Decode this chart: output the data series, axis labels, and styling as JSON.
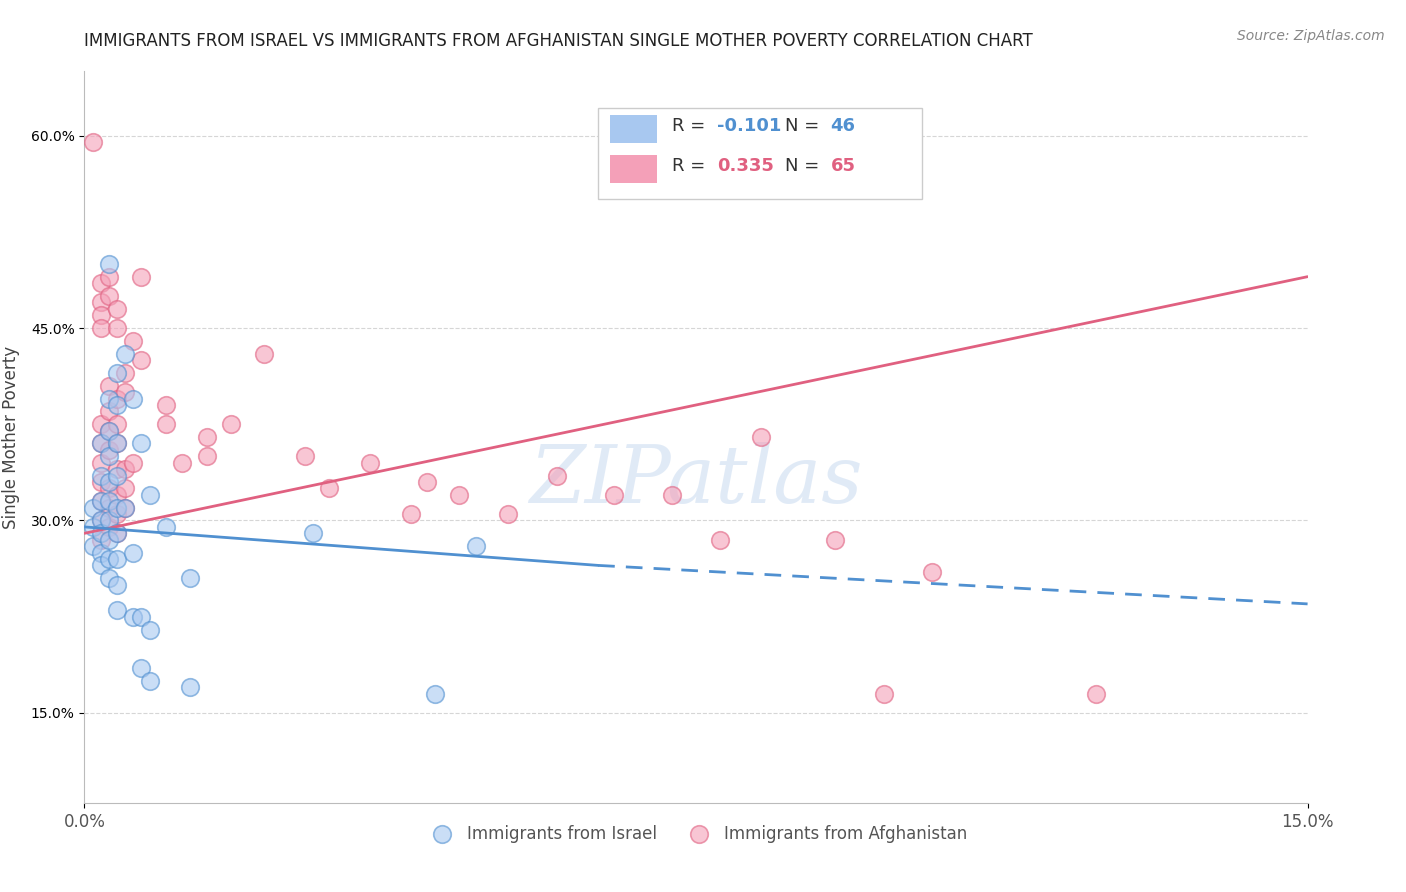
{
  "title": "IMMIGRANTS FROM ISRAEL VS IMMIGRANTS FROM AFGHANISTAN SINGLE MOTHER POVERTY CORRELATION CHART",
  "source": "Source: ZipAtlas.com",
  "ylabel": "Single Mother Poverty",
  "yticks": [
    0.15,
    0.3,
    0.45,
    0.6
  ],
  "xlim": [
    0.0,
    0.15
  ],
  "ylim": [
    0.08,
    0.65
  ],
  "legend_israel_r": "-0.101",
  "legend_israel_n": "46",
  "legend_afghan_r": "0.335",
  "legend_afghan_n": "65",
  "israel_color": "#a8c8f0",
  "afghan_color": "#f4a0b8",
  "israel_line_color": "#5090d0",
  "afghan_line_color": "#e06080",
  "ytick_color": "#5090d0",
  "watermark_text": "ZIPatlas",
  "israel_points": [
    [
      0.001,
      0.31
    ],
    [
      0.001,
      0.295
    ],
    [
      0.001,
      0.28
    ],
    [
      0.002,
      0.36
    ],
    [
      0.002,
      0.335
    ],
    [
      0.002,
      0.315
    ],
    [
      0.002,
      0.3
    ],
    [
      0.002,
      0.29
    ],
    [
      0.002,
      0.275
    ],
    [
      0.002,
      0.265
    ],
    [
      0.003,
      0.5
    ],
    [
      0.003,
      0.395
    ],
    [
      0.003,
      0.37
    ],
    [
      0.003,
      0.35
    ],
    [
      0.003,
      0.33
    ],
    [
      0.003,
      0.315
    ],
    [
      0.003,
      0.3
    ],
    [
      0.003,
      0.285
    ],
    [
      0.003,
      0.27
    ],
    [
      0.003,
      0.255
    ],
    [
      0.004,
      0.415
    ],
    [
      0.004,
      0.39
    ],
    [
      0.004,
      0.36
    ],
    [
      0.004,
      0.335
    ],
    [
      0.004,
      0.31
    ],
    [
      0.004,
      0.29
    ],
    [
      0.004,
      0.27
    ],
    [
      0.004,
      0.25
    ],
    [
      0.004,
      0.23
    ],
    [
      0.005,
      0.43
    ],
    [
      0.005,
      0.31
    ],
    [
      0.006,
      0.395
    ],
    [
      0.006,
      0.275
    ],
    [
      0.006,
      0.225
    ],
    [
      0.007,
      0.36
    ],
    [
      0.007,
      0.225
    ],
    [
      0.007,
      0.185
    ],
    [
      0.008,
      0.32
    ],
    [
      0.008,
      0.215
    ],
    [
      0.008,
      0.175
    ],
    [
      0.01,
      0.295
    ],
    [
      0.013,
      0.255
    ],
    [
      0.013,
      0.17
    ],
    [
      0.028,
      0.29
    ],
    [
      0.043,
      0.165
    ],
    [
      0.048,
      0.28
    ]
  ],
  "afghan_points": [
    [
      0.001,
      0.595
    ],
    [
      0.002,
      0.485
    ],
    [
      0.002,
      0.47
    ],
    [
      0.002,
      0.46
    ],
    [
      0.002,
      0.45
    ],
    [
      0.002,
      0.375
    ],
    [
      0.002,
      0.36
    ],
    [
      0.002,
      0.345
    ],
    [
      0.002,
      0.33
    ],
    [
      0.002,
      0.315
    ],
    [
      0.002,
      0.3
    ],
    [
      0.002,
      0.285
    ],
    [
      0.003,
      0.49
    ],
    [
      0.003,
      0.475
    ],
    [
      0.003,
      0.405
    ],
    [
      0.003,
      0.385
    ],
    [
      0.003,
      0.37
    ],
    [
      0.003,
      0.355
    ],
    [
      0.003,
      0.325
    ],
    [
      0.003,
      0.31
    ],
    [
      0.003,
      0.295
    ],
    [
      0.004,
      0.465
    ],
    [
      0.004,
      0.45
    ],
    [
      0.004,
      0.395
    ],
    [
      0.004,
      0.375
    ],
    [
      0.004,
      0.36
    ],
    [
      0.004,
      0.34
    ],
    [
      0.004,
      0.32
    ],
    [
      0.004,
      0.305
    ],
    [
      0.004,
      0.29
    ],
    [
      0.005,
      0.415
    ],
    [
      0.005,
      0.4
    ],
    [
      0.005,
      0.34
    ],
    [
      0.005,
      0.325
    ],
    [
      0.005,
      0.31
    ],
    [
      0.006,
      0.44
    ],
    [
      0.006,
      0.345
    ],
    [
      0.007,
      0.49
    ],
    [
      0.007,
      0.425
    ],
    [
      0.01,
      0.39
    ],
    [
      0.01,
      0.375
    ],
    [
      0.012,
      0.345
    ],
    [
      0.015,
      0.365
    ],
    [
      0.015,
      0.35
    ],
    [
      0.018,
      0.375
    ],
    [
      0.022,
      0.43
    ],
    [
      0.027,
      0.35
    ],
    [
      0.03,
      0.325
    ],
    [
      0.035,
      0.345
    ],
    [
      0.04,
      0.305
    ],
    [
      0.042,
      0.33
    ],
    [
      0.046,
      0.32
    ],
    [
      0.052,
      0.305
    ],
    [
      0.058,
      0.335
    ],
    [
      0.065,
      0.32
    ],
    [
      0.072,
      0.32
    ],
    [
      0.078,
      0.285
    ],
    [
      0.083,
      0.365
    ],
    [
      0.092,
      0.285
    ],
    [
      0.098,
      0.165
    ],
    [
      0.104,
      0.26
    ],
    [
      0.124,
      0.165
    ]
  ],
  "israel_trendline_solid": [
    [
      0.0,
      0.295
    ],
    [
      0.063,
      0.265
    ]
  ],
  "israel_trendline_dash": [
    [
      0.063,
      0.265
    ],
    [
      0.15,
      0.235
    ]
  ],
  "afghan_trendline": [
    [
      0.0,
      0.29
    ],
    [
      0.15,
      0.49
    ]
  ]
}
